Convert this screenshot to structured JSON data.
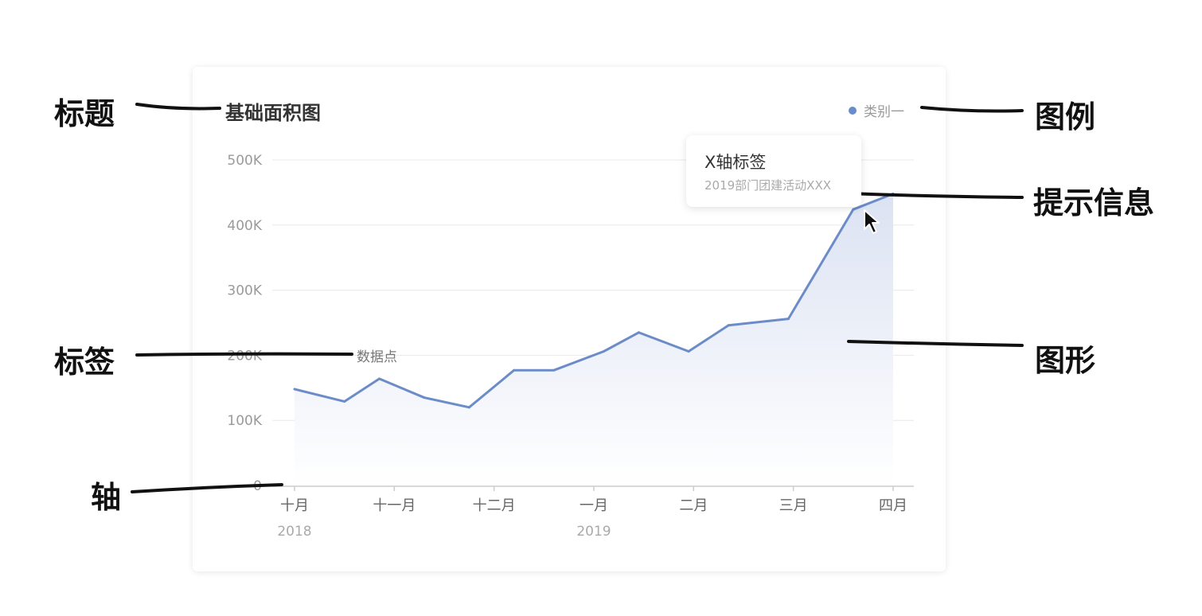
{
  "annotations": {
    "title": "标题",
    "legend": "图例",
    "tooltip": "提示信息",
    "label": "标签",
    "shape": "图形",
    "axis": "轴"
  },
  "colors": {
    "series": "#6b8cc9",
    "area_top": "#dbe2f2",
    "area_bottom": "#ffffff",
    "grid": "#e8e8e8",
    "axis": "#cccccc",
    "annotation_ink": "#111111"
  },
  "icons": {
    "legend_marker": "filled-circle",
    "cursor": "mouse-pointer-arrow"
  },
  "tooltip": {
    "title": "X轴标签",
    "subtitle": "2019部门团建活动XXX"
  },
  "chart_data": {
    "type": "area",
    "title": "基础面积图",
    "xlabel": "",
    "ylabel": "",
    "ylim": [
      0,
      500000
    ],
    "yticks": [
      0,
      100000,
      200000,
      300000,
      400000,
      500000
    ],
    "ytick_labels": [
      "0",
      "100K",
      "200K",
      "300K",
      "400K",
      "500K"
    ],
    "grid": true,
    "legend_position": "top-right",
    "xtick_labels": [
      "十月",
      "十一月",
      "十二月",
      "一月",
      "二月",
      "三月",
      "四月"
    ],
    "xtick_year_labels": [
      {
        "under": "十月",
        "text": "2018"
      },
      {
        "under": "一月",
        "text": "2019"
      }
    ],
    "data_point_label": "数据点",
    "series": [
      {
        "name": "类别一",
        "x": [
          0,
          0.5,
          0.85,
          1.3,
          1.75,
          2.2,
          2.6,
          3.1,
          3.45,
          3.95,
          4.35,
          4.95,
          5.6,
          6.0
        ],
        "y": [
          148000,
          129000,
          164000,
          135000,
          120000,
          177000,
          177000,
          206000,
          235000,
          206000,
          246000,
          256000,
          424000,
          448000
        ]
      }
    ]
  }
}
